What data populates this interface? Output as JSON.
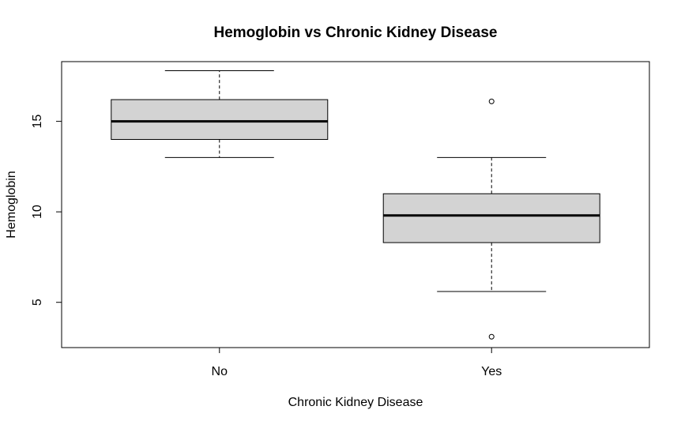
{
  "chart_data": {
    "type": "boxplot",
    "title": "Hemoglobin vs Chronic Kidney Disease",
    "xlabel": "Chronic Kidney Disease",
    "ylabel": "Hemoglobin",
    "ylim": [
      2.5,
      18.3
    ],
    "y_ticks": [
      "5",
      "10",
      "15"
    ],
    "categories": [
      "No",
      "Yes"
    ],
    "boxes": [
      {
        "category": "No",
        "whisker_low": 13.0,
        "q1": 14.0,
        "median": 15.0,
        "q3": 16.2,
        "whisker_high": 17.8,
        "outliers": []
      },
      {
        "category": "Yes",
        "whisker_low": 5.6,
        "q1": 8.3,
        "median": 9.8,
        "q3": 11.0,
        "whisker_high": 13.0,
        "outliers": [
          16.1,
          3.1
        ]
      }
    ],
    "box_fill": "#d3d3d3",
    "grid": false,
    "legend": "none"
  }
}
